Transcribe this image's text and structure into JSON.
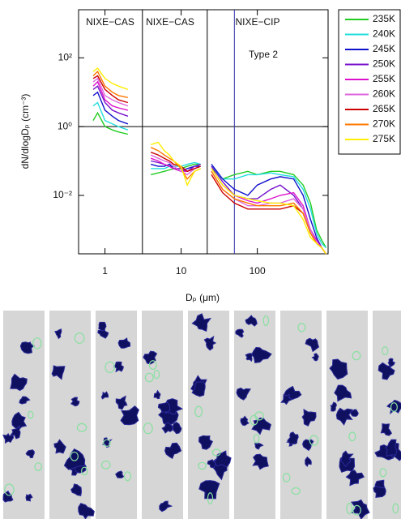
{
  "chart_data": {
    "type": "line",
    "x_label": "Dₚ (μm)",
    "y_label": "dN/dlogDₚ (cm⁻³)",
    "xscale": "log",
    "yscale": "log",
    "xlim": [
      0.45,
      850
    ],
    "ylim": [
      0.0002,
      2500
    ],
    "xticks": [
      1,
      10,
      100
    ],
    "yticks": [
      {
        "value": 100,
        "label": "10²"
      },
      {
        "value": 1,
        "label": "10⁰"
      },
      {
        "value": 0.01,
        "label": "10⁻²"
      }
    ],
    "reference_lines": {
      "y": [
        1
      ],
      "x": [
        {
          "value": 3.1,
          "color": "#000000"
        },
        {
          "value": 22,
          "color": "#000000"
        },
        {
          "value": 50,
          "color": "#3333aa"
        }
      ]
    },
    "annotations": [
      "NIXE−CAS",
      "NIXE−CAS",
      "NIXE−CIP",
      "Type 2"
    ],
    "legend": "outside-right",
    "x": [
      0.7,
      0.8,
      1.0,
      1.25,
      1.5,
      2.0,
      3.0,
      4,
      5,
      6,
      7,
      8,
      10,
      12,
      15,
      18,
      22,
      25,
      35,
      50,
      75,
      100,
      150,
      200,
      300,
      400,
      500,
      600,
      700,
      800
    ],
    "series": [
      {
        "name": "235K",
        "color": "#22cc22",
        "values": [
          1.5,
          2.5,
          1.0,
          0.8,
          0.7,
          0.6,
          null,
          0.04,
          0.045,
          0.05,
          0.055,
          0.06,
          0.06,
          0.07,
          0.08,
          0.08,
          null,
          0.06,
          0.03,
          0.04,
          0.05,
          0.04,
          0.05,
          0.05,
          0.04,
          0.02,
          0.006,
          0.001,
          0.0005,
          0.0003
        ]
      },
      {
        "name": "240K",
        "color": "#22dddd",
        "values": [
          4,
          5,
          1.5,
          1.2,
          1.0,
          0.8,
          null,
          0.06,
          0.06,
          0.06,
          0.07,
          0.07,
          0.07,
          0.08,
          0.09,
          0.08,
          null,
          0.07,
          0.03,
          0.03,
          0.04,
          0.04,
          0.045,
          0.04,
          0.035,
          0.015,
          0.004,
          0.0008,
          0.0004,
          0.0003
        ]
      },
      {
        "name": "245K",
        "color": "#1111cc",
        "values": [
          8,
          10,
          3,
          2,
          1.5,
          1.2,
          null,
          0.08,
          0.07,
          0.07,
          0.08,
          0.06,
          0.05,
          0.06,
          0.07,
          0.07,
          null,
          0.08,
          0.03,
          0.015,
          0.01,
          0.02,
          0.03,
          0.035,
          0.03,
          0.01,
          0.002,
          0.0006,
          0.0003,
          0.0002
        ]
      },
      {
        "name": "250K",
        "color": "#7711cc",
        "values": [
          12,
          15,
          5,
          3,
          2.5,
          2,
          null,
          0.1,
          0.09,
          0.08,
          0.07,
          0.06,
          0.06,
          0.05,
          0.07,
          0.08,
          null,
          0.07,
          0.025,
          0.01,
          0.008,
          0.008,
          0.015,
          0.02,
          0.01,
          0.004,
          0.001,
          0.0005,
          0.0003,
          0.0002
        ]
      },
      {
        "name": "255K",
        "color": "#dd11cc",
        "values": [
          15,
          20,
          6,
          4,
          3.5,
          3,
          null,
          0.12,
          0.1,
          0.08,
          0.07,
          0.06,
          0.05,
          0.05,
          0.06,
          0.07,
          null,
          0.06,
          0.02,
          0.01,
          0.007,
          0.006,
          0.008,
          0.01,
          0.012,
          0.005,
          0.001,
          0.0005,
          0.0003,
          0.0002
        ]
      },
      {
        "name": "260K",
        "color": "#dd66dd",
        "values": [
          20,
          25,
          8,
          6,
          5,
          4,
          null,
          0.15,
          0.12,
          0.1,
          0.09,
          0.07,
          0.05,
          0.04,
          0.06,
          0.07,
          null,
          0.05,
          0.015,
          0.008,
          0.005,
          0.005,
          0.006,
          0.006,
          0.008,
          0.004,
          0.001,
          0.0004,
          0.0003,
          0.0002
        ]
      },
      {
        "name": "265K",
        "color": "#cc0000",
        "values": [
          25,
          30,
          12,
          8,
          6,
          5,
          null,
          0.18,
          0.15,
          0.12,
          0.1,
          0.08,
          0.07,
          0.05,
          0.06,
          0.07,
          null,
          0.04,
          0.012,
          0.006,
          0.004,
          0.004,
          0.004,
          0.004,
          0.005,
          0.003,
          0.0008,
          0.0004,
          0.0003,
          0.0002
        ]
      },
      {
        "name": "270K",
        "color": "#ff7700",
        "values": [
          30,
          40,
          15,
          10,
          8,
          7,
          null,
          0.25,
          0.2,
          0.15,
          0.12,
          0.1,
          0.06,
          0.03,
          0.05,
          0.06,
          null,
          0.05,
          0.015,
          0.008,
          0.006,
          0.005,
          0.005,
          0.005,
          0.006,
          0.003,
          0.0008,
          0.0004,
          0.0003,
          0.0002
        ]
      },
      {
        "name": "275K",
        "color": "#ffee00",
        "values": [
          40,
          50,
          25,
          18,
          15,
          12,
          null,
          0.3,
          0.35,
          0.2,
          0.15,
          0.1,
          0.07,
          0.02,
          0.05,
          0.06,
          null,
          0.06,
          0.02,
          0.01,
          0.008,
          0.007,
          0.006,
          0.006,
          0.005,
          0.002,
          0.0006,
          0.0004,
          0.0003,
          0.0002
        ]
      }
    ]
  }
}
